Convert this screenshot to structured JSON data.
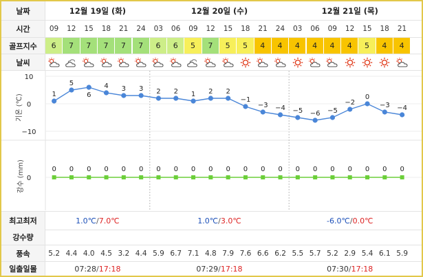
{
  "labels": {
    "date": "날짜",
    "time": "시간",
    "golf": "골프지수",
    "weather": "날씨",
    "temp": "기온 (℃)",
    "rain": "강수 (mm)",
    "minmax": "최고최저",
    "precip": "강수량",
    "wind": "풍속",
    "sun": "일출일몰"
  },
  "dates": [
    "12월 19일 (화)",
    "12월 20일 (수)",
    "12월 21일 (목)"
  ],
  "hours": [
    "09",
    "12",
    "15",
    "18",
    "21",
    "24",
    "03",
    "06",
    "09",
    "12",
    "15",
    "18",
    "21",
    "24",
    "03",
    "06",
    "09",
    "12",
    "15",
    "18",
    "21"
  ],
  "golf": [
    "6",
    "7",
    "7",
    "7",
    "7",
    "7",
    "6",
    "6",
    "5",
    "7",
    "5",
    "5",
    "4",
    "4",
    "4",
    "4",
    "4",
    "4",
    "5",
    "4",
    "4"
  ],
  "weather_icons": [
    "cloudy-sun-icon",
    "cloudy-icon",
    "cloudy-sun-icon",
    "cloudy-sun-icon",
    "cloudy-sun-icon",
    "cloudy-sun-icon",
    "cloudy-sun-icon",
    "cloudy-sun-icon",
    "cloudy-icon",
    "cloudy-sun-icon",
    "cloudy-sun-icon",
    "sun-icon",
    "cloudy-sun-icon",
    "cloudy-sun-icon",
    "sun-icon",
    "cloudy-sun-icon",
    "cloudy-sun-icon",
    "sun-icon",
    "sun-icon",
    "sun-icon",
    "cloudy-sun-icon"
  ],
  "chart_data": [
    {
      "type": "line",
      "x": [
        "09",
        "12",
        "15",
        "18",
        "21",
        "24",
        "03",
        "06",
        "09",
        "12",
        "15",
        "18",
        "21",
        "24",
        "03",
        "06",
        "09",
        "12",
        "15",
        "18",
        "21"
      ],
      "values": [
        1,
        5,
        6,
        4,
        3,
        3,
        2,
        2,
        1,
        2,
        2,
        -1,
        -3,
        -4,
        -5,
        -6,
        -5,
        -2,
        0,
        -3,
        -4
      ],
      "labels": [
        "1",
        "5",
        "6",
        "4",
        "3",
        "3",
        "2",
        "2",
        "1",
        "2",
        "2",
        "−1",
        "−3",
        "−4",
        "−5",
        "−6",
        "−5",
        "−2",
        "0",
        "−3",
        "−4"
      ],
      "ylabel": "기온 (℃)",
      "yticks": [
        "10",
        "0",
        "−10"
      ],
      "ytick_values": [
        10,
        0,
        -10
      ],
      "ylim": [
        -10,
        10
      ],
      "color": "#4a86d8"
    },
    {
      "type": "line",
      "x": [
        "09",
        "12",
        "15",
        "18",
        "21",
        "24",
        "03",
        "06",
        "09",
        "12",
        "15",
        "18",
        "21",
        "24",
        "03",
        "06",
        "09",
        "12",
        "15",
        "18",
        "21"
      ],
      "values": [
        0,
        0,
        0,
        0,
        0,
        0,
        0,
        0,
        0,
        0,
        0,
        0,
        0,
        0,
        0,
        0,
        0,
        0,
        0,
        0,
        0
      ],
      "labels": [
        "0",
        "0",
        "0",
        "0",
        "0",
        "0",
        "0",
        "0",
        "0",
        "0",
        "0",
        "0",
        "0",
        "0",
        "0",
        "0",
        "0",
        "0",
        "0",
        "0",
        "0"
      ],
      "ylabel": "강수 (mm)",
      "yticks": [
        "0"
      ],
      "color": "#6ccf3a"
    }
  ],
  "minmax": [
    {
      "lo": "1.0℃",
      "hi": "7.0℃"
    },
    {
      "lo": "1.0℃",
      "hi": "3.0℃"
    },
    {
      "lo": "-6.0℃",
      "hi": "0.0℃"
    }
  ],
  "slash": "/",
  "wind": [
    "5.2",
    "4.4",
    "4.0",
    "4.5",
    "3.2",
    "4.4",
    "5.9",
    "6.7",
    "7.1",
    "4.8",
    "7.9",
    "7.6",
    "6.6",
    "6.2",
    "5.5",
    "5.7",
    "5.2",
    "2.9",
    "5.4",
    "6.1",
    "5.9"
  ],
  "sun": [
    {
      "rise": "07:28",
      "set": "17:18"
    },
    {
      "rise": "07:29",
      "set": "17:18"
    },
    {
      "rise": "07:30",
      "set": "17:18"
    }
  ],
  "colors": {
    "golf_7": "#a4e07a",
    "golf_6": "#cdee88",
    "golf_5": "#f7ef5a",
    "golf_4": "#f8c400"
  }
}
